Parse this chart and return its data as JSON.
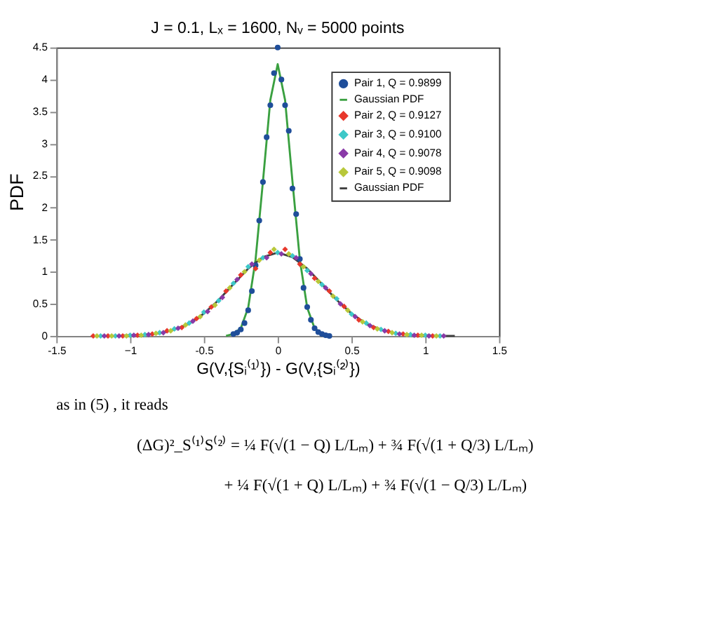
{
  "chart_data": {
    "type": "scatter",
    "title": "J = 0.1, Lₓ = 1600, Nᵥ = 5000 points",
    "xlabel": "G(V,{Sᵢ⁽¹⁾}) - G(V,{Sᵢ⁽²⁾})",
    "ylabel": "PDF",
    "xlim": [
      -1.5,
      1.5
    ],
    "xticks": [
      -1.5,
      {
        "value": -1,
        "label": "−1"
      },
      -0.5,
      {
        "value": 0,
        "label": "0"
      },
      0.5,
      {
        "value": 1,
        "label": "1"
      },
      1.5
    ],
    "ylim": [
      0,
      4.5
    ],
    "yticks": [
      0,
      0.5,
      1,
      1.5,
      2,
      2.5,
      3,
      3.5,
      4,
      4.5
    ],
    "grid": false,
    "legend": "top right",
    "series": [
      {
        "name": "Pair 1, Q = 0.9899",
        "type": "scatter",
        "marker": "circle",
        "color": "#1f4e9a",
        "x": [
          -0.3,
          -0.275,
          -0.25,
          -0.225,
          -0.2,
          -0.175,
          -0.15,
          -0.125,
          -0.1,
          -0.075,
          -0.05,
          -0.025,
          0,
          0.025,
          0.05,
          0.075,
          0.1,
          0.125,
          0.15,
          0.175,
          0.2,
          0.225,
          0.25,
          0.275,
          0.3,
          0.325,
          0.35
        ],
        "values": [
          0.03,
          0.05,
          0.1,
          0.2,
          0.4,
          0.7,
          1.1,
          1.8,
          2.4,
          3.1,
          3.6,
          4.1,
          4.5,
          4.0,
          3.6,
          3.2,
          2.3,
          1.9,
          1.2,
          0.75,
          0.45,
          0.25,
          0.12,
          0.06,
          0.03,
          0.01,
          0.0
        ]
      },
      {
        "name": "Gaussian PDF",
        "type": "line",
        "marker": "none",
        "color": "#3aa040",
        "x": [
          -0.35,
          -0.3,
          -0.25,
          -0.2,
          -0.15,
          -0.1,
          -0.05,
          0,
          0.05,
          0.1,
          0.15,
          0.2,
          0.25,
          0.3,
          0.35
        ],
        "values": [
          0.0,
          0.03,
          0.12,
          0.44,
          1.19,
          2.41,
          3.68,
          4.24,
          3.68,
          2.41,
          1.19,
          0.44,
          0.12,
          0.03,
          0.0
        ]
      },
      {
        "name": "Pair 2, Q = 0.9127",
        "type": "scatter",
        "marker": "diamond",
        "color": "#e8382c",
        "x": [
          -1.25,
          -1.15,
          -1.05,
          -0.95,
          -0.85,
          -0.75,
          -0.65,
          -0.55,
          -0.45,
          -0.35,
          -0.25,
          -0.15,
          -0.05,
          0.05,
          0.15,
          0.25,
          0.35,
          0.45,
          0.55,
          0.65,
          0.75,
          0.85,
          0.95,
          1.05
        ],
        "values": [
          0.0,
          0.0,
          0.0,
          0.01,
          0.03,
          0.08,
          0.13,
          0.27,
          0.45,
          0.7,
          0.95,
          1.05,
          1.3,
          1.35,
          1.12,
          0.9,
          0.7,
          0.46,
          0.25,
          0.13,
          0.07,
          0.03,
          0.01,
          0.0
        ]
      },
      {
        "name": "Pair 3, Q = 0.9100",
        "type": "scatter",
        "marker": "diamond",
        "color": "#3ec8c8",
        "x": [
          -1.2,
          -1.1,
          -1.0,
          -0.9,
          -0.8,
          -0.7,
          -0.6,
          -0.5,
          -0.4,
          -0.3,
          -0.2,
          -0.1,
          0,
          0.1,
          0.2,
          0.3,
          0.4,
          0.5,
          0.6,
          0.7,
          0.8,
          0.9,
          1.0,
          1.1
        ],
        "values": [
          0.0,
          0.0,
          0.01,
          0.02,
          0.05,
          0.11,
          0.2,
          0.37,
          0.55,
          0.82,
          1.08,
          1.22,
          1.3,
          1.25,
          1.02,
          0.8,
          0.58,
          0.34,
          0.2,
          0.1,
          0.04,
          0.02,
          0.01,
          0.0
        ]
      },
      {
        "name": "Pair 4, Q = 0.9078",
        "type": "scatter",
        "marker": "diamond",
        "color": "#8a3aa8",
        "x": [
          -1.175,
          -1.075,
          -0.975,
          -0.875,
          -0.775,
          -0.675,
          -0.575,
          -0.475,
          -0.375,
          -0.275,
          -0.175,
          -0.075,
          0.025,
          0.125,
          0.225,
          0.325,
          0.425,
          0.525,
          0.625,
          0.725,
          0.825,
          0.925,
          1.025,
          1.125
        ],
        "values": [
          0.0,
          0.0,
          0.01,
          0.02,
          0.05,
          0.12,
          0.23,
          0.38,
          0.6,
          0.88,
          1.12,
          1.22,
          1.28,
          1.22,
          0.97,
          0.75,
          0.5,
          0.3,
          0.16,
          0.08,
          0.03,
          0.01,
          0.0,
          0.0
        ]
      },
      {
        "name": "Pair 5, Q = 0.9098",
        "type": "scatter",
        "marker": "diamond",
        "color": "#b8c83a",
        "x": [
          -1.225,
          -1.125,
          -1.025,
          -0.925,
          -0.825,
          -0.725,
          -0.625,
          -0.525,
          -0.425,
          -0.325,
          -0.225,
          -0.125,
          -0.025,
          0.075,
          0.175,
          0.275,
          0.375,
          0.475,
          0.575,
          0.675,
          0.775,
          0.875,
          0.975,
          1.075
        ],
        "values": [
          0.0,
          0.0,
          0.0,
          0.01,
          0.04,
          0.08,
          0.17,
          0.3,
          0.48,
          0.75,
          1.0,
          1.18,
          1.35,
          1.28,
          1.08,
          0.85,
          0.62,
          0.4,
          0.22,
          0.11,
          0.05,
          0.02,
          0.01,
          0.0
        ]
      },
      {
        "name": "Gaussian PDF",
        "type": "line",
        "marker": "none",
        "color": "#404040",
        "x": [
          -1.2,
          -1.1,
          -1.0,
          -0.9,
          -0.8,
          -0.7,
          -0.6,
          -0.5,
          -0.4,
          -0.3,
          -0.2,
          -0.1,
          0,
          0.1,
          0.2,
          0.3,
          0.4,
          0.5,
          0.6,
          0.7,
          0.8,
          0.9,
          1.0,
          1.1,
          1.2
        ],
        "values": [
          0.0,
          0.0,
          0.01,
          0.02,
          0.04,
          0.1,
          0.19,
          0.35,
          0.56,
          0.81,
          1.05,
          1.23,
          1.3,
          1.23,
          1.05,
          0.81,
          0.56,
          0.35,
          0.19,
          0.1,
          0.04,
          0.02,
          0.01,
          0.0,
          0.0
        ]
      }
    ],
    "annotations": [
      "as in (5) , it reads",
      "(ΔG)²_S⁽¹⁾S⁽²⁾ = ¼ F(√(1 − Q) L/Lₘ) + ¾ F(√(1 + Q/3) L/Lₘ)",
      "+ ¼ F(√(1 + Q) L/Lₘ) + ¾ F(√(1 − Q/3) L/Lₘ)"
    ]
  }
}
